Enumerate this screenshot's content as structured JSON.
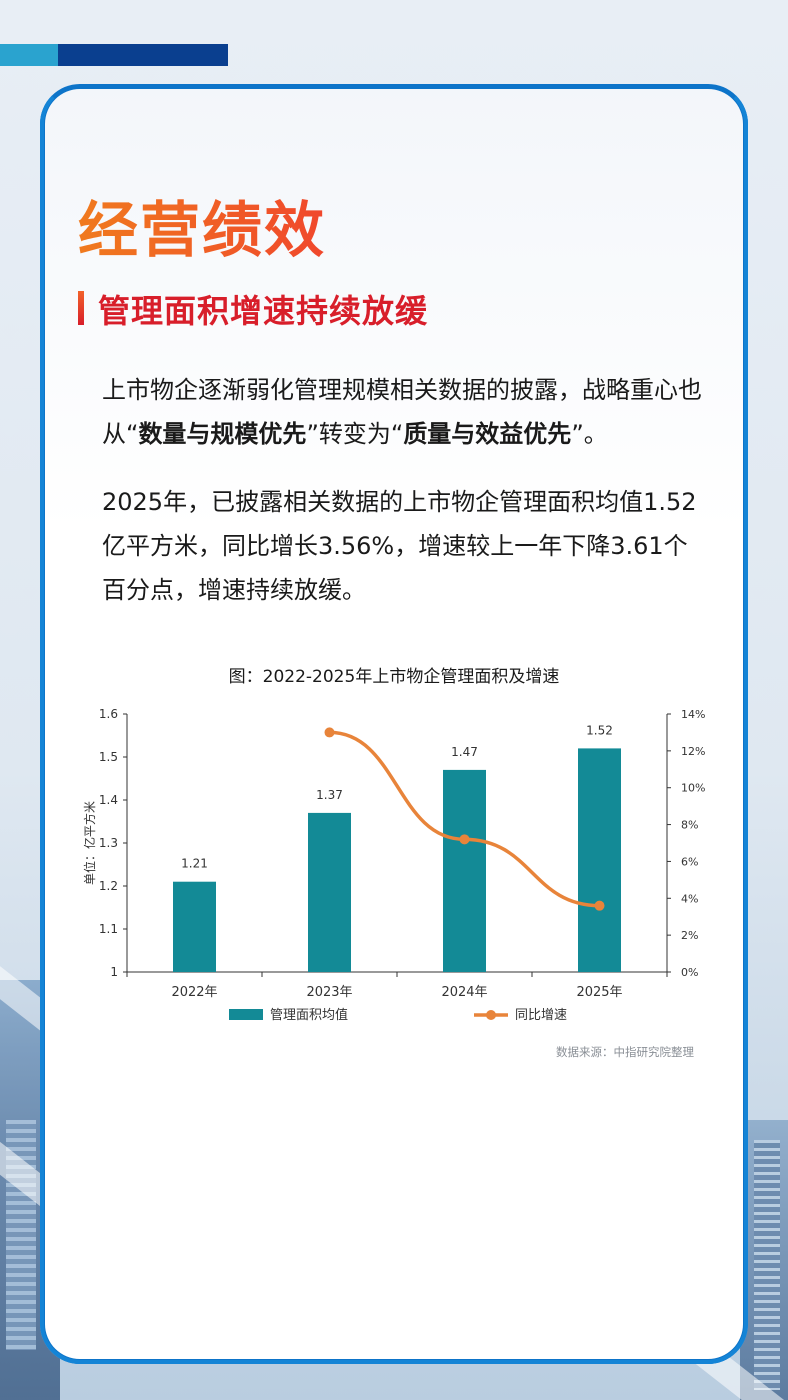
{
  "header": {
    "section_title": "经营绩效",
    "subtitle": "管理面积增速持续放缓"
  },
  "paragraphs": {
    "p1_part1": "上市物企逐渐弱化管理规模相关数据的披露，战略重心也从",
    "p1_quote1_open": "“",
    "p1_bold1": "数量与规模优先",
    "p1_quote1_close": "”",
    "p1_part2": "转变为",
    "p1_quote2_open": "“",
    "p1_bold2": "质量与效益优先",
    "p1_quote2_close": "”",
    "p1_part3": "。",
    "p2": "2025年，已披露相关数据的上市物企管理面积均值1.52亿平方米，同比增长3.56%，增速较上一年下降3.61个百分点，增速持续放缓。"
  },
  "source_note": "数据来源：中指研究院整理",
  "colors": {
    "bar": "#138a96",
    "line": "#e8843a",
    "title_orange": "#f2622a",
    "subtitle_red": "#d81e2a"
  },
  "chart_data": {
    "type": "bar",
    "title": "图：2022-2025年上市物企管理面积及增速",
    "categories": [
      "2022年",
      "2023年",
      "2024年",
      "2025年"
    ],
    "series": [
      {
        "name": "管理面积均值",
        "type": "bar",
        "axis": "left",
        "values": [
          1.21,
          1.37,
          1.47,
          1.52
        ],
        "data_labels": [
          "1.21",
          "1.37",
          "1.47",
          "1.52"
        ]
      },
      {
        "name": "同比增速",
        "type": "line",
        "axis": "right",
        "values": [
          null,
          13.0,
          7.2,
          3.6
        ]
      }
    ],
    "ylabel": "单位：亿平方米",
    "ylim": [
      1,
      1.6
    ],
    "yticks": [
      "1",
      "1.1",
      "1.2",
      "1.3",
      "1.4",
      "1.5",
      "1.6"
    ],
    "y2lim": [
      0,
      14
    ],
    "y2ticks": [
      "0%",
      "2%",
      "4%",
      "6%",
      "8%",
      "10%",
      "12%",
      "14%"
    ],
    "legend_position": "bottom"
  }
}
